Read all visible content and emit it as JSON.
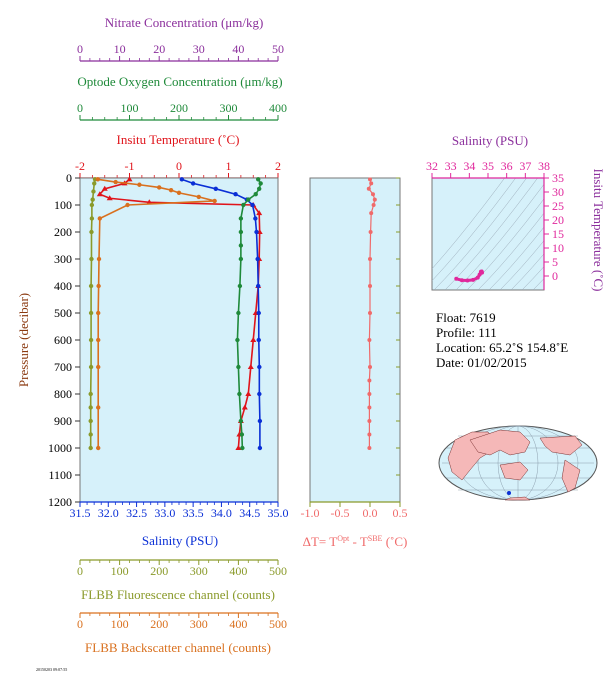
{
  "colors": {
    "nitrate": "#8b2f9c",
    "oxygen": "#1f8a3a",
    "temperature": "#e0141b",
    "salinity": "#0a2fd6",
    "fluorescence": "#8a9a2a",
    "backscatter": "#d9701e",
    "dt": "#f06a6a",
    "ts": "#e0289c",
    "panel_bg": "#d6f1fa",
    "axis": "#555555"
  },
  "axes": {
    "nitrate": {
      "label": "Nitrate Concentration (μm/kg)",
      "ticks": [
        "0",
        "10",
        "20",
        "30",
        "40",
        "50"
      ],
      "range": [
        0,
        50
      ]
    },
    "oxygen": {
      "label": "Optode Oxygen Concentration (μm/kg)",
      "ticks": [
        "0",
        "100",
        "200",
        "300",
        "400"
      ],
      "range": [
        0,
        400
      ]
    },
    "temperature": {
      "label": "Insitu Temperature (˚C)",
      "ticks": [
        "-2",
        "-1",
        "0",
        "1",
        "2"
      ],
      "range": [
        -2,
        2
      ]
    },
    "salinity": {
      "label": "Salinity (PSU)",
      "ticks": [
        "31.5",
        "32.0",
        "32.5",
        "33.0",
        "33.5",
        "34.0",
        "34.5",
        "35.0"
      ],
      "range": [
        31.5,
        35.0
      ]
    },
    "fluorescence": {
      "label": "FLBB Fluorescence channel (counts)",
      "ticks": [
        "0",
        "100",
        "200",
        "300",
        "400",
        "500"
      ],
      "range": [
        0,
        500
      ]
    },
    "backscatter": {
      "label": "FLBB Backscatter channel (counts)",
      "ticks": [
        "0",
        "100",
        "200",
        "300",
        "400",
        "500"
      ],
      "range": [
        0,
        500
      ]
    },
    "pressure": {
      "label": "Pressure (decibar)",
      "ticks": [
        "0",
        "100",
        "200",
        "300",
        "400",
        "500",
        "600",
        "700",
        "800",
        "900",
        "1000",
        "1100",
        "1200"
      ],
      "range": [
        0,
        1200
      ]
    },
    "dt": {
      "label": "ΔT= T",
      "sup1": "Opt",
      "mid": " - T",
      "sup2": "SBE",
      "unit": " (˚C)",
      "ticks": [
        "-1.0",
        "-0.5",
        "0.0",
        "0.5"
      ],
      "range": [
        -1.0,
        0.5
      ]
    },
    "ts_salinity": {
      "label": "Salinity (PSU)",
      "ticks": [
        "32",
        "33",
        "34",
        "35",
        "36",
        "37",
        "38"
      ],
      "range": [
        32,
        38
      ]
    },
    "ts_temperature": {
      "label": "Insitu Temperature (˚C)",
      "ticks": [
        "0",
        "5",
        "10",
        "15",
        "20",
        "25",
        "30",
        "35"
      ],
      "range": [
        -5,
        35
      ]
    }
  },
  "info": {
    "float": "Float:  7619",
    "profile": "Profile:  111",
    "location": "Location:  65.2˚S  154.8˚E",
    "date": "Date:  01/02/2015"
  },
  "footer_stamp": "20150203 09:07:55",
  "chart_data": [
    {
      "type": "line",
      "panel": "profiles",
      "y_name": "Pressure (decibar)",
      "ylim": [
        1200,
        0
      ],
      "grid": false,
      "series": [
        {
          "name": "Insitu Temperature",
          "axis": "temperature",
          "x": [
            -1.0,
            -1.1,
            -1.5,
            -1.6,
            -1.4,
            -0.6,
            1.5,
            1.62,
            1.63,
            1.62,
            1.6,
            1.55,
            1.5,
            1.45,
            1.4,
            1.33,
            1.25,
            1.22,
            1.2
          ],
          "y": [
            5,
            20,
            40,
            60,
            75,
            90,
            100,
            130,
            200,
            300,
            400,
            500,
            600,
            700,
            800,
            850,
            900,
            950,
            1000
          ]
        },
        {
          "name": "Salinity",
          "axis": "salinity",
          "x": [
            33.3,
            33.5,
            33.9,
            34.25,
            34.45,
            34.55,
            34.6,
            34.62,
            34.64,
            34.65,
            34.66,
            34.66,
            34.67,
            34.67,
            34.68,
            34.68
          ],
          "y": [
            5,
            20,
            40,
            60,
            80,
            100,
            150,
            200,
            300,
            400,
            500,
            600,
            700,
            800,
            900,
            1000
          ]
        },
        {
          "name": "Optode Oxygen Concentration",
          "axis": "oxygen",
          "x": [
            360,
            365,
            362,
            355,
            340,
            330,
            325,
            325,
            325,
            325,
            323,
            320,
            318,
            320,
            322,
            325,
            327,
            328
          ],
          "y": [
            5,
            20,
            40,
            60,
            80,
            100,
            150,
            200,
            250,
            300,
            400,
            500,
            600,
            700,
            800,
            900,
            950,
            1000
          ]
        },
        {
          "name": "FLBB Fluorescence channel",
          "axis": "fluorescence",
          "x": [
            38,
            36,
            34,
            32,
            30,
            30,
            29,
            29,
            28,
            28,
            28,
            28,
            27,
            27,
            27,
            27,
            27
          ],
          "y": [
            5,
            20,
            50,
            80,
            100,
            150,
            200,
            300,
            400,
            500,
            600,
            700,
            800,
            850,
            900,
            950,
            1000
          ]
        },
        {
          "name": "FLBB Backscatter channel",
          "axis": "backscatter",
          "x": [
            45,
            90,
            150,
            200,
            230,
            250,
            300,
            340,
            120,
            50,
            48,
            47,
            46,
            46,
            46,
            46,
            46
          ],
          "y": [
            5,
            15,
            25,
            35,
            45,
            55,
            70,
            85,
            100,
            150,
            300,
            400,
            500,
            600,
            700,
            850,
            1000
          ]
        }
      ]
    },
    {
      "type": "scatter",
      "panel": "delta_t",
      "name": "ΔT",
      "x": [
        0.0,
        0.02,
        -0.02,
        0.05,
        0.08,
        0.06,
        0.02,
        0.01,
        0.0,
        0.0,
        0.0,
        -0.01,
        0.0,
        -0.01,
        -0.01,
        -0.01,
        -0.01,
        -0.01,
        -0.01
      ],
      "y": [
        5,
        20,
        40,
        60,
        80,
        100,
        130,
        200,
        300,
        400,
        500,
        600,
        700,
        750,
        800,
        850,
        900,
        950,
        1000
      ],
      "xlim": [
        -1.0,
        0.5
      ],
      "ylim": [
        1200,
        0
      ]
    },
    {
      "type": "line",
      "panel": "ts_diagram",
      "name": "T-S",
      "x": [
        33.3,
        33.6,
        33.9,
        34.2,
        34.45,
        34.55,
        34.62,
        34.66,
        34.68
      ],
      "y": [
        -1.0,
        -1.5,
        -1.6,
        -1.4,
        -0.6,
        0.5,
        1.5,
        1.6,
        1.2
      ],
      "xlim": [
        32,
        38
      ],
      "ylim": [
        -5,
        35
      ]
    }
  ]
}
